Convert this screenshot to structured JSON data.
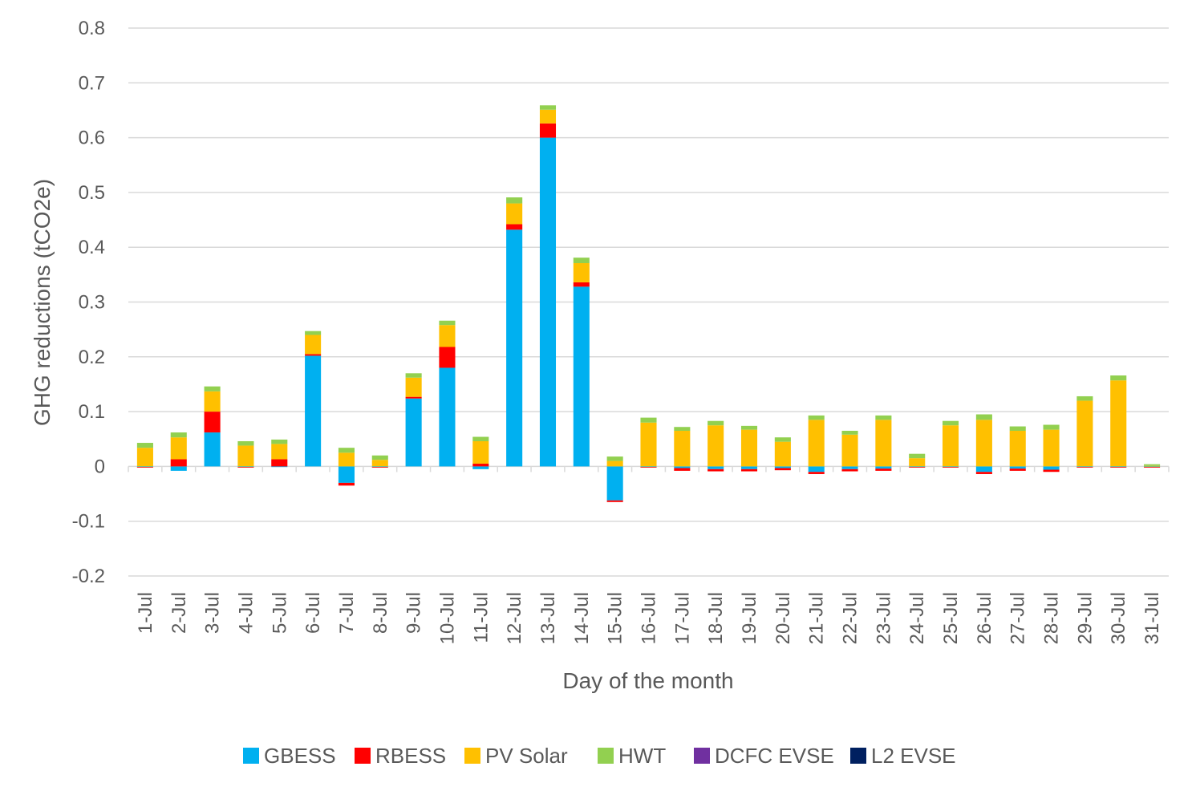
{
  "chart_data": {
    "type": "bar",
    "stacked": true,
    "title": "",
    "xlabel": "Day of the month",
    "ylabel": "GHG reductions (tCO2e)",
    "ylim": [
      -0.2,
      0.8
    ],
    "yticks": [
      -0.2,
      -0.1,
      0,
      0.1,
      0.2,
      0.3,
      0.4,
      0.5,
      0.6,
      0.7,
      0.8
    ],
    "ytick_labels": [
      "-0.2",
      "-0.1",
      "0",
      "0.1",
      "0.2",
      "0.3",
      "0.4",
      "0.5",
      "0.6",
      "0.7",
      "0.8"
    ],
    "grid": true,
    "legend_position": "bottom",
    "categories": [
      "1-Jul",
      "2-Jul",
      "3-Jul",
      "4-Jul",
      "5-Jul",
      "6-Jul",
      "7-Jul",
      "8-Jul",
      "9-Jul",
      "10-Jul",
      "11-Jul",
      "12-Jul",
      "13-Jul",
      "14-Jul",
      "15-Jul",
      "16-Jul",
      "17-Jul",
      "18-Jul",
      "19-Jul",
      "20-Jul",
      "21-Jul",
      "22-Jul",
      "23-Jul",
      "24-Jul",
      "25-Jul",
      "26-Jul",
      "27-Jul",
      "28-Jul",
      "29-Jul",
      "30-Jul",
      "31-Jul"
    ],
    "series": [
      {
        "name": "GBESS",
        "color": "#00b0f0",
        "values": [
          -0.001,
          -0.008,
          0.062,
          -0.001,
          -0.001,
          0.202,
          -0.03,
          -0.001,
          0.124,
          0.18,
          -0.005,
          0.432,
          0.6,
          0.328,
          -0.062,
          -0.001,
          -0.003,
          -0.005,
          -0.005,
          -0.003,
          -0.01,
          -0.005,
          -0.004,
          -0.001,
          -0.001,
          -0.01,
          -0.004,
          -0.006,
          -0.001,
          -0.001,
          -0.001
        ]
      },
      {
        "name": "RBESS",
        "color": "#ff0000",
        "values": [
          -0.001,
          0.013,
          0.038,
          -0.001,
          0.013,
          0.003,
          -0.005,
          -0.001,
          0.003,
          0.038,
          0.005,
          0.01,
          0.026,
          0.008,
          -0.003,
          -0.001,
          -0.005,
          -0.004,
          -0.004,
          -0.004,
          -0.004,
          -0.004,
          -0.004,
          -0.001,
          -0.001,
          -0.004,
          -0.004,
          -0.004,
          -0.001,
          -0.001,
          -0.001
        ]
      },
      {
        "name": "PV Solar",
        "color": "#ffc000",
        "values": [
          0.034,
          0.04,
          0.037,
          0.038,
          0.028,
          0.035,
          0.025,
          0.012,
          0.035,
          0.04,
          0.041,
          0.038,
          0.025,
          0.035,
          0.01,
          0.08,
          0.065,
          0.075,
          0.067,
          0.045,
          0.085,
          0.058,
          0.085,
          0.015,
          0.075,
          0.085,
          0.065,
          0.067,
          0.12,
          0.157,
          0.001
        ]
      },
      {
        "name": "HWT",
        "color": "#92d050",
        "values": [
          0.009,
          0.009,
          0.009,
          0.008,
          0.008,
          0.007,
          0.009,
          0.008,
          0.008,
          0.008,
          0.008,
          0.011,
          0.008,
          0.01,
          0.008,
          0.009,
          0.007,
          0.008,
          0.007,
          0.008,
          0.008,
          0.007,
          0.008,
          0.008,
          0.008,
          0.01,
          0.008,
          0.009,
          0.008,
          0.009,
          0.003
        ]
      },
      {
        "name": "DCFC EVSE",
        "color": "#7030a0",
        "values": [
          0,
          0,
          0,
          0,
          0,
          0,
          0,
          0,
          0,
          0,
          0,
          0,
          0,
          0,
          0,
          0,
          0,
          0,
          0,
          0,
          0,
          0,
          0,
          0,
          0,
          0,
          0,
          0,
          0,
          0,
          0
        ]
      },
      {
        "name": "L2 EVSE",
        "color": "#002060",
        "values": [
          0,
          0,
          0,
          0,
          0,
          0,
          0,
          0,
          0,
          0,
          0,
          0,
          0,
          0,
          0,
          0,
          0,
          0,
          0,
          0,
          0,
          0,
          0,
          0,
          0,
          0,
          0,
          0,
          0,
          0,
          0
        ]
      }
    ]
  }
}
